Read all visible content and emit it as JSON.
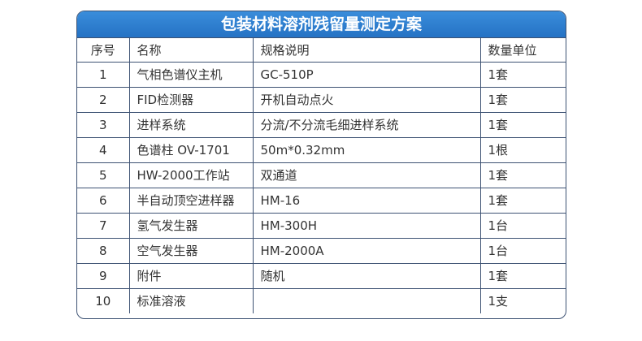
{
  "title": "包装材料溶剂残留量测定方案",
  "headers": [
    "序号",
    "名称",
    "规格说明",
    "数量单位"
  ],
  "rows": [
    [
      "1",
      "气相色谱仪主机",
      "GC-510P",
      "1套"
    ],
    [
      "2",
      "FID检测器",
      "开机自动点火",
      "1套"
    ],
    [
      "3",
      "进样系统",
      "分流/不分流毛细进样系统",
      "1套"
    ],
    [
      "4",
      "色谱柱 OV-1701",
      "50m*0.32mm",
      "1根"
    ],
    [
      "5",
      "HW-2000工作站",
      "双通道",
      "1套"
    ],
    [
      "6",
      "半自动顶空进样器",
      "HM-16",
      "1套"
    ],
    [
      "7",
      "氢气发生器",
      "HM-300H",
      "1台"
    ],
    [
      "8",
      "空气发生器",
      "HM-2000A",
      "1台"
    ],
    [
      "9",
      "附件",
      "随机",
      "1套"
    ],
    [
      "10",
      "标准溶液",
      "",
      "1支"
    ]
  ]
}
